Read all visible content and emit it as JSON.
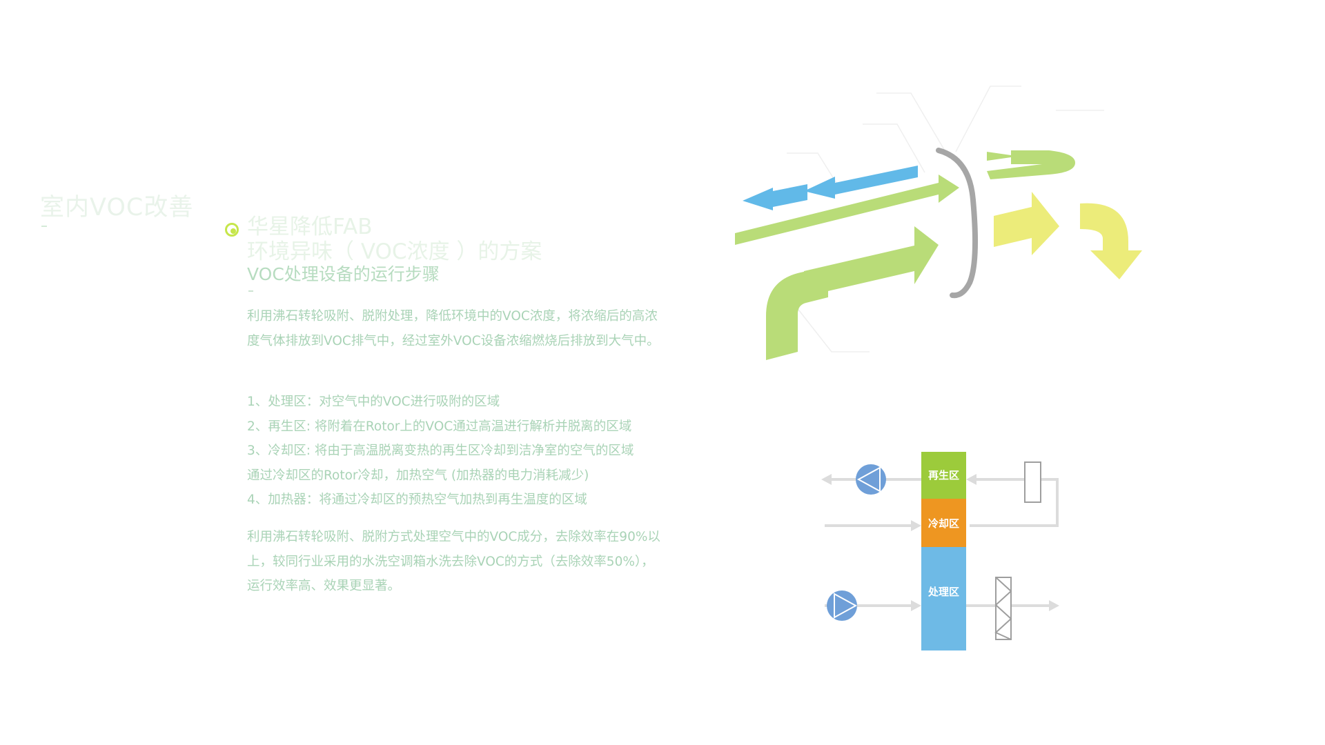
{
  "section": {
    "title": "室内VOC改善"
  },
  "heading": {
    "line1": "华星降低FAB",
    "line2": "环境异味（ VOC浓度 ）的方案",
    "line3": "VOC处理设备的运行步骤"
  },
  "intro": "利用沸石转轮吸附、脱附处理，降低环境中的VOC浓度，将浓缩后的高浓度气体排放到VOC排气中，经过室外VOC设备浓缩燃烧后排放到大气中。",
  "steps": [
    "1、处理区：对空气中的VOC进行吸附的区域",
    "2、再生区: 将附着在Rotor上的VOC通过高温进行解析并脱离的区域",
    "3、冷却区:   将由于高温脱离变热的再生区冷却到洁净室的空气的区域",
    "通过冷却区的Rotor冷却，加热空气 (加热器的电力消耗减少)",
    "4、加热器：将通过冷却区的预热空气加热到再生温度的区域"
  ],
  "summary": "利用沸石转轮吸附、脱附方式处理空气中的VOC成分，去除效率在90%以上，较同行业采用的水洗空调箱水洗去除VOC的方式（去除效率50%），运行效率高、效果更显著。",
  "diagram": {
    "zones": [
      {
        "label": "再生区",
        "color": "#9ccb3b"
      },
      {
        "label": "冷却区",
        "color": "#ee9621"
      },
      {
        "label": "处理区",
        "color": "#6ebae6"
      }
    ],
    "colors": {
      "fan": "#6f9fd8",
      "line": "#dcdcdc",
      "green_arrow": "#b9dc78",
      "yellow_arrow": "#ecec7a",
      "blue_arrow": "#61b9e8",
      "rotor": "#a6a6a6"
    },
    "icons": [
      "fan-icon",
      "fan-icon",
      "heater-icon",
      "filter-icon"
    ]
  }
}
